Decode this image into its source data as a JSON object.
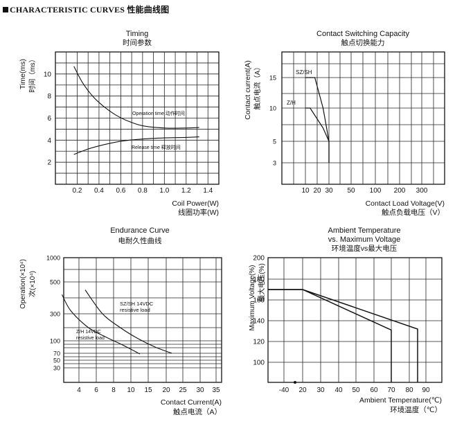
{
  "page": {
    "heading": "CHARACTERISTIC CURVES 性能曲线图"
  },
  "chart_data": [
    {
      "id": "timing",
      "type": "line",
      "title": "Timing",
      "title_cn": "时间参数",
      "xlabel": "Coil Power(W)",
      "xlabel_cn": "线圈功率(W)",
      "ylabel": "Time(ms)",
      "ylabel_cn": "时间（ms）",
      "x_ticks": [
        "0.2",
        "0.4",
        "0.6",
        "0.8",
        "1.0",
        "1.2",
        "1.4"
      ],
      "y_ticks": [
        "2",
        "4",
        "6",
        "8",
        "10"
      ],
      "xlim": [
        0.0,
        1.5
      ],
      "ylim": [
        0,
        12
      ],
      "grid": true,
      "series": [
        {
          "name": "Operation time 动作时间",
          "x": [
            0.17,
            0.25,
            0.35,
            0.45,
            0.55,
            0.65,
            0.8,
            1.0,
            1.2,
            1.32
          ],
          "y": [
            10.7,
            9.2,
            7.9,
            7.0,
            6.3,
            5.8,
            5.3,
            5.1,
            5.1,
            5.15
          ]
        },
        {
          "name": "Release time 释放时间",
          "x": [
            0.17,
            0.3,
            0.45,
            0.6,
            0.8,
            1.0,
            1.2,
            1.32
          ],
          "y": [
            2.7,
            3.2,
            3.6,
            3.9,
            4.1,
            4.2,
            4.25,
            4.3
          ]
        }
      ]
    },
    {
      "id": "switching",
      "type": "line",
      "title": "Contact Switching Capacity",
      "title_cn": "触点切换能力",
      "xlabel": "Contact Load Voltage(V)",
      "xlabel_cn": "触点负载电压（V）",
      "ylabel": "Contact current(A)",
      "ylabel_cn": "触点电流（A）",
      "x_ticks": [
        "10",
        "20",
        "30",
        "50",
        "100",
        "200",
        "300"
      ],
      "y_ticks": [
        "3",
        "5",
        "10",
        "15"
      ],
      "grid": true,
      "series": [
        {
          "name": "SZ/SH",
          "x": [
            10,
            18,
            25,
            30,
            30
          ],
          "y": [
            15,
            15,
            10,
            5,
            3
          ]
        },
        {
          "name": "Z/H",
          "x": [
            10,
            14,
            25,
            30,
            30
          ],
          "y": [
            10,
            10,
            7,
            5,
            3
          ]
        }
      ]
    },
    {
      "id": "endurance",
      "type": "line",
      "title": "Endurance Curve",
      "title_cn": "电耐久性曲线",
      "xlabel": "Contact Current(A)",
      "xlabel_cn": "触点电流（A）",
      "ylabel": "Operation(×10⁴)",
      "ylabel_cn": "次(×10⁴)",
      "x_ticks": [
        "4",
        "6",
        "8",
        "10",
        "15",
        "20",
        "25",
        "30",
        "35"
      ],
      "y_ticks": [
        "30",
        "50",
        "70",
        "100",
        "300",
        "500",
        "1000"
      ],
      "grid": true,
      "annotations": [
        "SZ/SH 14VDC",
        "resistive load",
        "Z/H 14VDC",
        "resistive load"
      ],
      "series": [
        {
          "name": "SZ/SH 14VDC resistive load",
          "x": [
            6,
            8,
            10,
            15,
            20,
            25
          ],
          "y": [
            450,
            300,
            200,
            120,
            85,
            70
          ]
        },
        {
          "name": "Z/H 14VDC resistive load",
          "x": [
            3,
            4,
            6,
            8,
            10,
            15
          ],
          "y": [
            420,
            320,
            200,
            130,
            90,
            68
          ]
        }
      ]
    },
    {
      "id": "ambient",
      "type": "line",
      "title": "Ambient Temperature",
      "title_line2": "vs. Maximum Voltage",
      "title_cn": "环境温度vs最大电压",
      "xlabel": "Ambient Temperature(℃)",
      "xlabel_cn": "环境温度（℃）",
      "ylabel": "Maximum Voltage(%)",
      "ylabel_cn": "最大电压(%)",
      "x_ticks": [
        "-40",
        "20",
        "30",
        "40",
        "50",
        "60",
        "70",
        "80",
        "90"
      ],
      "y_ticks": [
        "100",
        "120",
        "140",
        "160",
        "180",
        "200"
      ],
      "grid": true,
      "series": [
        {
          "name": "",
          "x": [
            -40,
            20,
            85,
            85
          ],
          "y": [
            170,
            170,
            132,
            80
          ]
        },
        {
          "name": "",
          "x": [
            -40,
            20,
            70,
            70
          ],
          "y": [
            170,
            170,
            131,
            80
          ]
        }
      ]
    }
  ]
}
